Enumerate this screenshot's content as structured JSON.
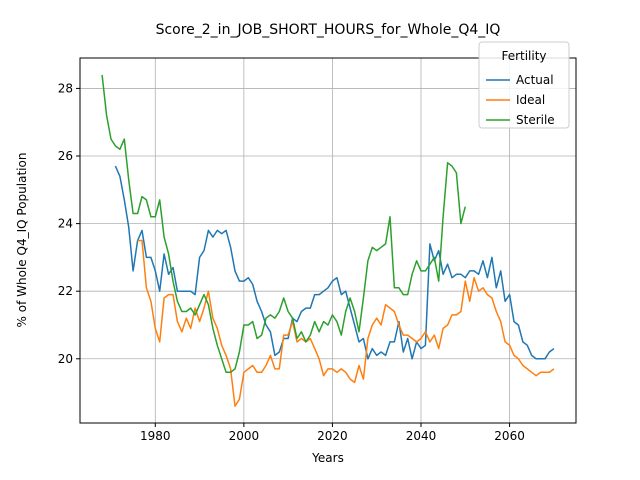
{
  "chart_data": {
    "type": "line",
    "title": "Score_2_in_JOB_SHORT_HOURS_for_Whole_Q4_IQ",
    "xlabel": "Years",
    "ylabel": "% of Whole Q4_IQ Population",
    "xlim": [
      1963,
      2075
    ],
    "ylim": [
      18.1,
      28.9
    ],
    "xticks": [
      1980,
      2000,
      2020,
      2040,
      2060
    ],
    "yticks": [
      20,
      22,
      24,
      26,
      28
    ],
    "grid": true,
    "legend": {
      "title": "Fertility",
      "placement": "top-right"
    },
    "series": [
      {
        "name": "Actual",
        "color": "#1f77b4",
        "x": [
          1971,
          1972,
          1973,
          1974,
          1975,
          1976,
          1977,
          1978,
          1979,
          1980,
          1981,
          1982,
          1983,
          1984,
          1985,
          1986,
          1987,
          1988,
          1989,
          1990,
          1991,
          1992,
          1993,
          1994,
          1995,
          1996,
          1997,
          1998,
          1999,
          2000,
          2001,
          2002,
          2003,
          2004,
          2005,
          2006,
          2007,
          2008,
          2009,
          2010,
          2011,
          2012,
          2013,
          2014,
          2015,
          2016,
          2017,
          2018,
          2019,
          2020,
          2021,
          2022,
          2023,
          2024,
          2025,
          2026,
          2027,
          2028,
          2029,
          2030,
          2031,
          2032,
          2033,
          2034,
          2035,
          2036,
          2037,
          2038,
          2039,
          2040,
          2041,
          2042,
          2043,
          2044,
          2045,
          2046,
          2047,
          2048,
          2049,
          2050,
          2051,
          2052,
          2053,
          2054,
          2055,
          2056,
          2057,
          2058,
          2059,
          2060,
          2061,
          2062,
          2063,
          2064,
          2065,
          2066,
          2067,
          2068,
          2069,
          2070
        ],
        "y": [
          25.7,
          25.4,
          24.7,
          23.9,
          22.6,
          23.5,
          23.8,
          23.0,
          23.0,
          22.6,
          22.0,
          23.1,
          22.5,
          22.7,
          22.0,
          22.0,
          22.0,
          22.0,
          21.9,
          23.0,
          23.2,
          23.8,
          23.6,
          23.8,
          23.7,
          23.8,
          23.3,
          22.6,
          22.3,
          22.3,
          22.4,
          22.2,
          21.7,
          21.4,
          21.0,
          20.8,
          20.1,
          20.2,
          20.6,
          20.6,
          21.2,
          21.1,
          21.4,
          21.5,
          21.5,
          21.9,
          21.9,
          22.0,
          22.1,
          22.3,
          22.4,
          21.9,
          22.0,
          21.5,
          21.0,
          20.5,
          20.6,
          20.0,
          20.3,
          20.1,
          20.2,
          20.1,
          20.5,
          20.5,
          21.1,
          20.2,
          20.6,
          20.0,
          20.5,
          20.3,
          20.4,
          23.4,
          22.9,
          23.2,
          22.5,
          22.8,
          22.4,
          22.5,
          22.5,
          22.4,
          22.6,
          22.6,
          22.5,
          22.9,
          22.4,
          23.0,
          22.1,
          22.6,
          21.7,
          21.9,
          21.1,
          21.0,
          20.5,
          20.4,
          20.1,
          20.0,
          20.0,
          20.0,
          20.2,
          20.3
        ]
      },
      {
        "name": "Ideal",
        "color": "#ff7f0e",
        "x": [
          1976,
          1977,
          1978,
          1979,
          1980,
          1981,
          1982,
          1983,
          1984,
          1985,
          1986,
          1987,
          1988,
          1989,
          1990,
          1991,
          1992,
          1993,
          1994,
          1995,
          1996,
          1997,
          1998,
          1999,
          2000,
          2001,
          2002,
          2003,
          2004,
          2005,
          2006,
          2007,
          2008,
          2009,
          2010,
          2011,
          2012,
          2013,
          2014,
          2015,
          2016,
          2017,
          2018,
          2019,
          2020,
          2021,
          2022,
          2023,
          2024,
          2025,
          2026,
          2027,
          2028,
          2029,
          2030,
          2031,
          2032,
          2033,
          2034,
          2035,
          2036,
          2037,
          2038,
          2039,
          2040,
          2041,
          2042,
          2043,
          2044,
          2045,
          2046,
          2047,
          2048,
          2049,
          2050,
          2051,
          2052,
          2053,
          2054,
          2055,
          2056,
          2057,
          2058,
          2059,
          2060,
          2061,
          2062,
          2063,
          2064,
          2065,
          2066,
          2067,
          2068,
          2069,
          2070
        ],
        "y": [
          23.5,
          23.5,
          22.1,
          21.7,
          20.9,
          20.5,
          21.8,
          21.9,
          21.9,
          21.1,
          20.8,
          21.2,
          20.9,
          21.5,
          21.1,
          21.5,
          22.0,
          21.2,
          20.9,
          20.4,
          20.1,
          19.7,
          18.6,
          18.8,
          19.6,
          19.7,
          19.8,
          19.6,
          19.6,
          19.8,
          20.1,
          19.7,
          19.7,
          20.7,
          20.7,
          21.1,
          20.5,
          20.6,
          20.5,
          20.6,
          20.3,
          20.0,
          19.5,
          19.7,
          19.7,
          19.6,
          19.7,
          19.6,
          19.4,
          19.3,
          19.8,
          19.4,
          20.6,
          21.0,
          21.2,
          21.0,
          21.6,
          21.5,
          21.4,
          21.0,
          20.7,
          20.7,
          20.6,
          20.5,
          20.6,
          20.8,
          20.5,
          20.7,
          20.3,
          20.9,
          21.0,
          21.3,
          21.3,
          21.4,
          22.3,
          21.7,
          22.4,
          22.0,
          22.1,
          21.9,
          21.8,
          21.4,
          21.1,
          20.5,
          20.4,
          20.1,
          20.0,
          19.8,
          19.7,
          19.6,
          19.5,
          19.6,
          19.6,
          19.6,
          19.7
        ]
      },
      {
        "name": "Sterile",
        "color": "#2ca02c",
        "x": [
          1968,
          1969,
          1970,
          1971,
          1972,
          1973,
          1974,
          1975,
          1976,
          1977,
          1978,
          1979,
          1980,
          1981,
          1982,
          1983,
          1984,
          1985,
          1986,
          1987,
          1988,
          1989,
          1990,
          1991,
          1992,
          1993,
          1994,
          1995,
          1996,
          1997,
          1998,
          1999,
          2000,
          2001,
          2002,
          2003,
          2004,
          2005,
          2006,
          2007,
          2008,
          2009,
          2010,
          2011,
          2012,
          2013,
          2014,
          2015,
          2016,
          2017,
          2018,
          2019,
          2020,
          2021,
          2022,
          2023,
          2024,
          2025,
          2026,
          2027,
          2028,
          2029,
          2030,
          2031,
          2032,
          2033,
          2034,
          2035,
          2036,
          2037,
          2038,
          2039,
          2040,
          2041,
          2042,
          2043,
          2044,
          2045,
          2046,
          2047,
          2048,
          2049,
          2050
        ],
        "y": [
          28.4,
          27.2,
          26.5,
          26.3,
          26.2,
          26.5,
          25.3,
          24.3,
          24.3,
          24.8,
          24.7,
          24.2,
          24.2,
          24.7,
          23.6,
          23.1,
          22.3,
          21.7,
          21.4,
          21.4,
          21.5,
          21.3,
          21.6,
          21.9,
          21.6,
          20.9,
          20.4,
          20.0,
          19.6,
          19.6,
          19.7,
          20.2,
          21.0,
          21.0,
          21.1,
          20.6,
          20.7,
          21.2,
          21.3,
          21.2,
          21.4,
          21.8,
          21.4,
          21.2,
          20.6,
          20.8,
          20.5,
          20.7,
          21.1,
          20.8,
          21.1,
          21.0,
          21.3,
          21.1,
          20.7,
          21.4,
          21.8,
          21.4,
          20.8,
          21.8,
          22.9,
          23.3,
          23.2,
          23.3,
          23.4,
          24.2,
          22.1,
          22.1,
          21.9,
          21.9,
          22.5,
          22.9,
          22.6,
          22.6,
          22.8,
          23.0,
          22.3,
          24.2,
          25.8,
          25.7,
          25.5,
          24.0,
          24.5
        ]
      }
    ]
  }
}
